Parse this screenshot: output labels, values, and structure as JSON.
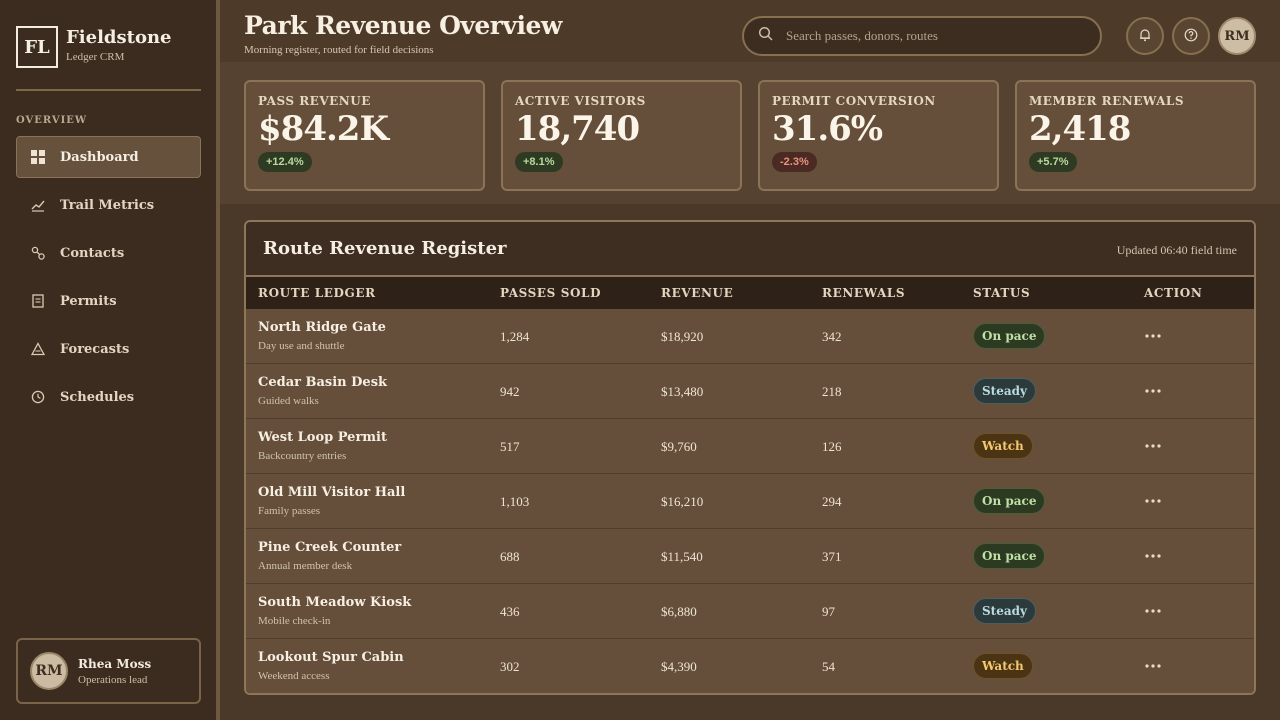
{
  "brand": {
    "logo": "FL",
    "name": "Fieldstone",
    "subtitle": "Ledger CRM"
  },
  "sidebar": {
    "section_label": "OVERVIEW",
    "items": [
      {
        "label": "Dashboard",
        "icon": "grid-icon",
        "active": true
      },
      {
        "label": "Trail Metrics",
        "icon": "line-chart-icon",
        "active": false
      },
      {
        "label": "Contacts",
        "icon": "link-nodes-icon",
        "active": false
      },
      {
        "label": "Permits",
        "icon": "document-icon",
        "active": false
      },
      {
        "label": "Forecasts",
        "icon": "triangle-icon",
        "active": false
      },
      {
        "label": "Schedules",
        "icon": "clock-icon",
        "active": false
      }
    ],
    "user": {
      "initials": "RM",
      "name": "Rhea Moss",
      "role": "Operations lead"
    }
  },
  "header": {
    "title": "Park Revenue Overview",
    "subtitle": "Morning register, routed for field decisions",
    "search_placeholder": "Search passes, donors, routes",
    "avatar_initials": "RM"
  },
  "kpis": [
    {
      "label": "PASS REVENUE",
      "value": "$84.2K",
      "delta": "+12.4%",
      "trend": "up"
    },
    {
      "label": "ACTIVE VISITORS",
      "value": "18,740",
      "delta": "+8.1%",
      "trend": "up"
    },
    {
      "label": "PERMIT CONVERSION",
      "value": "31.6%",
      "delta": "-2.3%",
      "trend": "down"
    },
    {
      "label": "MEMBER RENEWALS",
      "value": "2,418",
      "delta": "+5.7%",
      "trend": "up"
    }
  ],
  "table": {
    "title": "Route Revenue Register",
    "meta": "Updated 06:40 field time",
    "columns": [
      "ROUTE LEDGER",
      "PASSES SOLD",
      "REVENUE",
      "RENEWALS",
      "STATUS",
      "ACTION"
    ],
    "rows": [
      {
        "name": "North Ridge Gate",
        "sub": "Day use and shuttle",
        "passes": "1,284",
        "revenue": "$18,920",
        "renewals": "342",
        "status": "On pace"
      },
      {
        "name": "Cedar Basin Desk",
        "sub": "Guided walks",
        "passes": "942",
        "revenue": "$13,480",
        "renewals": "218",
        "status": "Steady"
      },
      {
        "name": "West Loop Permit",
        "sub": "Backcountry entries",
        "passes": "517",
        "revenue": "$9,760",
        "renewals": "126",
        "status": "Watch"
      },
      {
        "name": "Old Mill Visitor Hall",
        "sub": "Family passes",
        "passes": "1,103",
        "revenue": "$16,210",
        "renewals": "294",
        "status": "On pace"
      },
      {
        "name": "Pine Creek Counter",
        "sub": "Annual member desk",
        "passes": "688",
        "revenue": "$11,540",
        "renewals": "371",
        "status": "On pace"
      },
      {
        "name": "South Meadow Kiosk",
        "sub": "Mobile check-in",
        "passes": "436",
        "revenue": "$6,880",
        "renewals": "97",
        "status": "Steady"
      },
      {
        "name": "Lookout Spur Cabin",
        "sub": "Weekend access",
        "passes": "302",
        "revenue": "$4,390",
        "renewals": "54",
        "status": "Watch"
      }
    ]
  }
}
